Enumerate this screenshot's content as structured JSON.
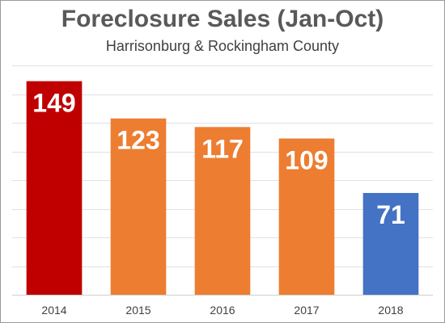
{
  "chart_data": {
    "type": "bar",
    "title": "Foreclosure Sales (Jan-Oct)",
    "subtitle": "Harrisonburg & Rockingham County",
    "categories": [
      "2014",
      "2015",
      "2016",
      "2017",
      "2018"
    ],
    "values": [
      149,
      123,
      117,
      109,
      71
    ],
    "colors": [
      "#c00000",
      "#ed7d31",
      "#ed7d31",
      "#ed7d31",
      "#4472c4"
    ],
    "xlabel": "",
    "ylabel": "",
    "ylim": [
      0,
      160
    ],
    "grid": true,
    "y_tick_labels_shown": false,
    "data_labels": true,
    "legend": "none"
  }
}
